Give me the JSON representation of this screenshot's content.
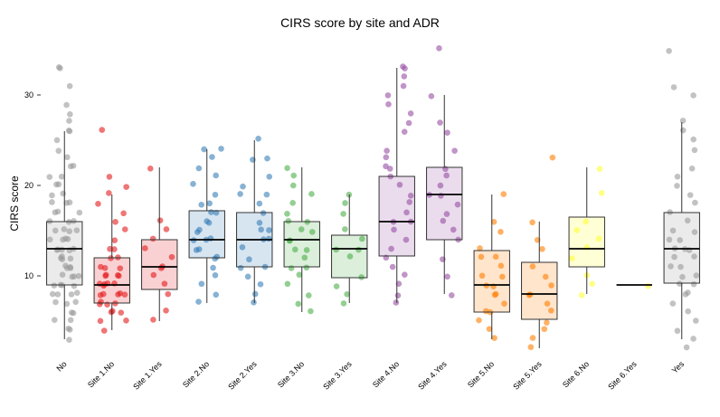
{
  "chart_data": {
    "type": "boxplot",
    "title": "CIRS score by site and ADR",
    "xlabel": "",
    "ylabel": "CIRS score",
    "ylim": [
      1,
      36
    ],
    "yticks": [
      10,
      20,
      30
    ],
    "grid": false,
    "legend": "none",
    "categories": [
      "No",
      "Site 1.No",
      "Site 1.Yes",
      "Site 2.No",
      "Site 2.Yes",
      "Site 3.No",
      "Site 3.Yes",
      "Site 4.No",
      "Site 4.Yes",
      "Site 5.No",
      "Site 5.Yes",
      "Site 6.No",
      "Site 6.Yes",
      "Yes"
    ],
    "colors": [
      "#999999",
      "#e41a1c",
      "#e41a1c",
      "#377eb8",
      "#377eb8",
      "#4daf4a",
      "#4daf4a",
      "#984ea3",
      "#984ea3",
      "#ff7f00",
      "#ff7f00",
      "#ffff33",
      "#ffff33",
      "#999999"
    ],
    "boxes": [
      {
        "category": "No",
        "min": 3,
        "q1": 9,
        "median": 13,
        "q3": 16,
        "max": 26
      },
      {
        "category": "Site 1.No",
        "min": 4,
        "q1": 7,
        "median": 9,
        "q3": 12,
        "max": 19
      },
      {
        "category": "Site 1.Yes",
        "min": 5,
        "q1": 8.5,
        "median": 11,
        "q3": 14,
        "max": 22
      },
      {
        "category": "Site 2.No",
        "min": 7,
        "q1": 12,
        "median": 14,
        "q3": 17.2,
        "max": 24
      },
      {
        "category": "Site 2.Yes",
        "min": 7,
        "q1": 11,
        "median": 14,
        "q3": 17,
        "max": 25
      },
      {
        "category": "Site 3.No",
        "min": 6,
        "q1": 11,
        "median": 14,
        "q3": 16,
        "max": 22
      },
      {
        "category": "Site 3.Yes",
        "min": 7,
        "q1": 9.8,
        "median": 13,
        "q3": 14.5,
        "max": 19
      },
      {
        "category": "Site 4.No",
        "min": 7,
        "q1": 12.2,
        "median": 16,
        "q3": 21,
        "max": 33
      },
      {
        "category": "Site 4.Yes",
        "min": 8,
        "q1": 14,
        "median": 19,
        "q3": 22,
        "max": 30
      },
      {
        "category": "Site 5.No",
        "min": 3,
        "q1": 6,
        "median": 9,
        "q3": 12.8,
        "max": 19
      },
      {
        "category": "Site 5.Yes",
        "min": 2,
        "q1": 5.2,
        "median": 8,
        "q3": 11.5,
        "max": 16
      },
      {
        "category": "Site 6.No",
        "min": 8,
        "q1": 11,
        "median": 13,
        "q3": 16.5,
        "max": 22
      },
      {
        "category": "Site 6.Yes",
        "min": 9,
        "q1": 9,
        "median": 9,
        "q3": 9,
        "max": 9
      },
      {
        "category": "Yes",
        "min": 3,
        "q1": 9.2,
        "median": 13,
        "q3": 17,
        "max": 27
      }
    ],
    "points": [
      [
        3,
        4,
        4,
        5,
        5,
        6,
        6,
        7,
        7,
        7,
        8,
        8,
        8,
        8,
        9,
        9,
        9,
        9,
        10,
        10,
        10,
        10,
        11,
        11,
        11,
        11,
        12,
        12,
        12,
        12,
        13,
        13,
        13,
        13,
        13,
        14,
        14,
        14,
        14,
        15,
        15,
        15,
        15,
        16,
        16,
        16,
        17,
        17,
        17,
        18,
        18,
        18,
        19,
        19,
        20,
        20,
        21,
        21,
        22,
        22,
        23,
        24,
        25,
        26,
        26,
        27,
        28,
        29,
        31,
        33,
        33
      ],
      [
        4,
        5,
        5,
        6,
        6,
        6,
        7,
        7,
        7,
        7,
        8,
        8,
        8,
        8,
        8,
        9,
        9,
        9,
        9,
        9,
        10,
        10,
        10,
        10,
        11,
        11,
        11,
        12,
        12,
        13,
        13,
        14,
        15,
        16,
        17,
        18,
        19,
        20,
        21,
        26
      ],
      [
        5,
        6,
        8,
        9,
        10,
        11,
        11,
        12,
        13,
        14,
        15,
        16,
        22
      ],
      [
        7,
        8,
        9,
        10,
        11,
        12,
        12,
        13,
        13,
        14,
        14,
        14,
        15,
        15,
        16,
        16,
        17,
        17,
        18,
        18,
        19,
        20,
        21,
        22,
        23,
        24,
        24
      ],
      [
        7,
        8,
        9,
        10,
        11,
        11,
        12,
        13,
        14,
        14,
        15,
        15,
        16,
        17,
        18,
        19,
        19,
        20,
        21,
        23,
        23,
        25
      ],
      [
        6,
        7,
        8,
        9,
        10,
        11,
        11,
        12,
        13,
        13,
        14,
        14,
        15,
        15,
        16,
        16,
        17,
        18,
        19,
        20,
        21,
        22
      ],
      [
        7,
        8,
        9,
        10,
        12,
        13,
        13,
        14,
        15,
        17,
        18,
        19
      ],
      [
        7,
        8,
        9,
        10,
        11,
        12,
        13,
        14,
        15,
        16,
        16,
        17,
        18,
        19,
        20,
        21,
        22,
        22,
        23,
        24,
        26,
        27,
        28,
        29,
        30,
        31,
        32,
        33,
        33
      ],
      [
        8,
        10,
        12,
        14,
        15,
        16,
        17,
        18,
        19,
        19,
        20,
        21,
        22,
        24,
        26,
        27,
        30,
        35
      ],
      [
        3,
        4,
        5,
        6,
        6,
        7,
        8,
        8,
        9,
        9,
        10,
        10,
        11,
        12,
        12,
        13,
        15,
        16,
        19
      ],
      [
        2,
        3,
        4,
        5,
        6,
        7,
        8,
        8,
        9,
        10,
        11,
        13,
        14,
        16,
        23
      ],
      [
        8,
        9,
        10,
        12,
        13,
        14,
        15,
        16,
        19,
        22
      ],
      [
        9
      ],
      [
        2,
        3,
        4,
        5,
        6,
        7,
        8,
        8,
        9,
        9,
        10,
        10,
        11,
        11,
        12,
        12,
        13,
        13,
        13,
        14,
        14,
        15,
        15,
        16,
        17,
        18,
        19,
        20,
        21,
        22,
        24,
        25,
        26,
        27,
        30,
        31,
        35
      ]
    ]
  }
}
